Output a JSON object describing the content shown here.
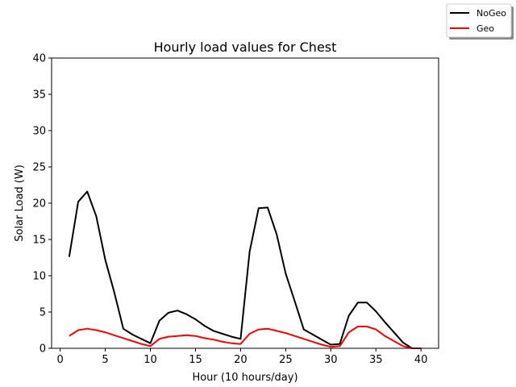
{
  "chart_data": {
    "type": "line",
    "title": "Hourly load values for Chest",
    "xlabel": "Hour (10 hours/day)",
    "ylabel": "Solar Load (W)",
    "xlim": [
      -0.95,
      41.95
    ],
    "ylim": [
      0,
      40
    ],
    "xticks": [
      0,
      5,
      10,
      15,
      20,
      25,
      30,
      35,
      40
    ],
    "yticks": [
      0,
      5,
      10,
      15,
      20,
      25,
      30,
      35,
      40
    ],
    "grid": false,
    "legend_position": "top-right (outside plot)",
    "x": [
      1,
      2,
      3,
      4,
      5,
      6,
      7,
      8,
      9,
      10,
      11,
      12,
      13,
      14,
      15,
      16,
      17,
      18,
      19,
      20,
      21,
      22,
      23,
      24,
      25,
      26,
      27,
      28,
      29,
      30,
      31,
      32,
      33,
      34,
      35,
      36,
      37,
      38,
      39,
      40
    ],
    "series": [
      {
        "name": "NoGeo",
        "color": "#000000",
        "values": [
          12.6,
          20.2,
          21.6,
          18.2,
          12.2,
          7.7,
          2.7,
          1.9,
          1.3,
          0.7,
          3.8,
          4.9,
          5.2,
          4.7,
          4.0,
          3.1,
          2.4,
          2.0,
          1.6,
          1.3,
          13.3,
          19.3,
          19.4,
          15.7,
          10.3,
          6.5,
          2.6,
          1.9,
          1.2,
          0.5,
          0.6,
          4.5,
          6.3,
          6.3,
          5.1,
          3.6,
          2.2,
          0.8,
          0.0,
          0.0
        ]
      },
      {
        "name": "Geo",
        "color": "#ff0000",
        "values": [
          1.7,
          2.5,
          2.7,
          2.5,
          2.2,
          1.8,
          1.4,
          1.0,
          0.6,
          0.3,
          1.3,
          1.6,
          1.7,
          1.8,
          1.7,
          1.4,
          1.2,
          0.9,
          0.7,
          0.6,
          2.0,
          2.6,
          2.7,
          2.4,
          2.1,
          1.7,
          1.3,
          0.9,
          0.5,
          0.2,
          0.3,
          2.2,
          3.0,
          3.0,
          2.6,
          1.7,
          1.0,
          0.3,
          0.0,
          0.0
        ]
      }
    ]
  }
}
